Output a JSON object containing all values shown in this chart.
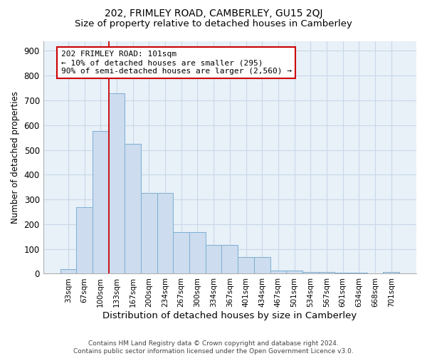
{
  "title": "202, FRIMLEY ROAD, CAMBERLEY, GU15 2QJ",
  "subtitle": "Size of property relative to detached houses in Camberley",
  "xlabel": "Distribution of detached houses by size in Camberley",
  "ylabel": "Number of detached properties",
  "categories": [
    "33sqm",
    "67sqm",
    "100sqm",
    "133sqm",
    "167sqm",
    "200sqm",
    "234sqm",
    "267sqm",
    "300sqm",
    "334sqm",
    "367sqm",
    "401sqm",
    "434sqm",
    "467sqm",
    "501sqm",
    "534sqm",
    "567sqm",
    "601sqm",
    "634sqm",
    "668sqm",
    "701sqm"
  ],
  "values": [
    20,
    270,
    575,
    730,
    525,
    325,
    325,
    168,
    168,
    115,
    115,
    68,
    68,
    12,
    12,
    8,
    8,
    5,
    5,
    0,
    8
  ],
  "bar_color": "#cddcee",
  "bar_edge_color": "#7bafd4",
  "grid_color": "#c8d8e8",
  "background_color": "#e8f0f8",
  "annotation_line1": "202 FRIMLEY ROAD: 101sqm",
  "annotation_line2": "← 10% of detached houses are smaller (295)",
  "annotation_line3": "90% of semi-detached houses are larger (2,560) →",
  "annotation_box_facecolor": "#ffffff",
  "annotation_box_edgecolor": "#cc0000",
  "vline_x_index": 2,
  "vline_color": "#cc0000",
  "ylim": [
    0,
    940
  ],
  "yticks": [
    0,
    100,
    200,
    300,
    400,
    500,
    600,
    700,
    800,
    900
  ],
  "footer_line1": "Contains HM Land Registry data © Crown copyright and database right 2024.",
  "footer_line2": "Contains public sector information licensed under the Open Government Licence v3.0.",
  "title_fontsize": 10,
  "subtitle_fontsize": 9.5,
  "xlabel_fontsize": 9.5,
  "ylabel_fontsize": 8.5,
  "ytick_fontsize": 8.5,
  "xtick_fontsize": 7.5,
  "annotation_fontsize": 8,
  "footer_fontsize": 6.5
}
